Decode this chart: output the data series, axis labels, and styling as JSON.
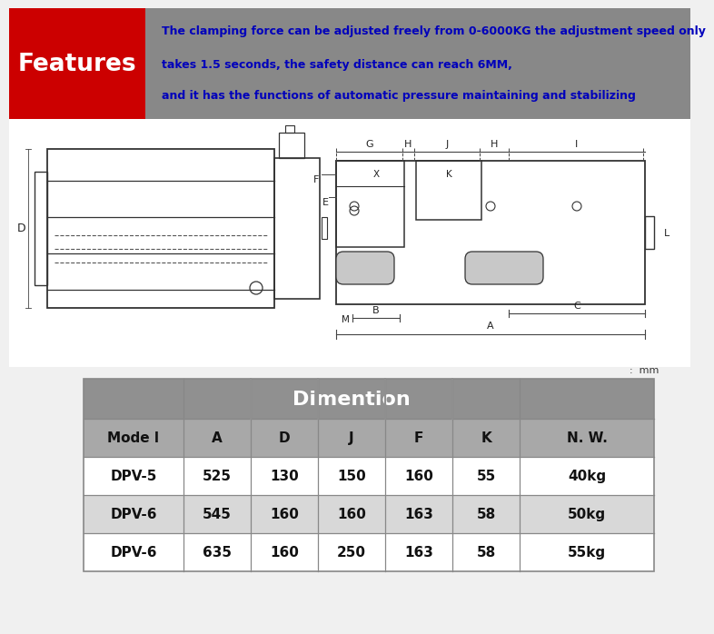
{
  "bg_color": "#f0f0f0",
  "header_bg": "#888888",
  "red_box_color": "#cc0000",
  "features_text": "Features",
  "features_text_color": "#ffffff",
  "desc_line1": "The clamping force can be adjusted freely from 0-6000KG the adjustment speed only",
  "desc_line2": "takes 1.5 seconds, the safety distance can reach 6MM,",
  "desc_line3": "and it has the functions of automatic pressure maintaining and stabilizing",
  "desc_text_color": "#0000bb",
  "unit_label": ":  mm",
  "table_header_bg": "#909090",
  "table_subheader_bg": "#a8a8a8",
  "table_row_bg_light": "#ffffff",
  "table_row_bg_dark": "#d8d8d8",
  "table_dim_header": "Dimention",
  "table_col_model": "Mode l",
  "table_col_nw": "N. W.",
  "table_dim_cols": [
    "A",
    "D",
    "J",
    "F",
    "K"
  ],
  "table_data": [
    [
      "DPV-5",
      "525",
      "130",
      "150",
      "160",
      "55",
      "40kg"
    ],
    [
      "DPV-6",
      "545",
      "160",
      "160",
      "163",
      "58",
      "50kg"
    ],
    [
      "DPV-6",
      "635",
      "160",
      "250",
      "163",
      "58",
      "55kg"
    ]
  ],
  "diagram_line_color": "#333333",
  "diagram_dash_color": "#555555",
  "dim_line_color": "#444444"
}
